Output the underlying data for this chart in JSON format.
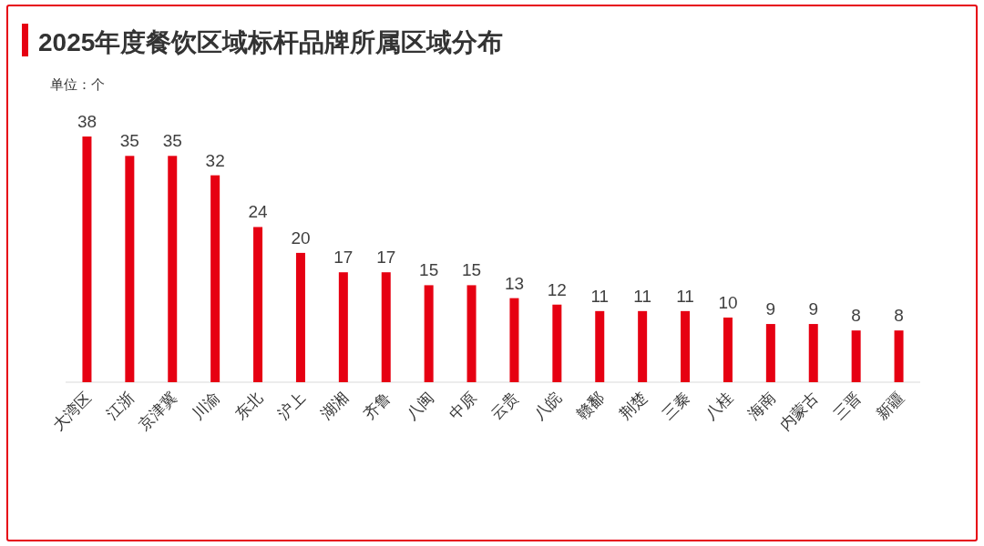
{
  "chart_data": {
    "type": "bar",
    "title": "2025年度餐饮区域标杆品牌所属区域分布",
    "categories": [
      "大湾区",
      "江浙",
      "京津冀",
      "川渝",
      "东北",
      "沪上",
      "湖湘",
      "齐鲁",
      "八闽",
      "中原",
      "云贵",
      "八皖",
      "赣鄱",
      "荆楚",
      "三秦",
      "八桂",
      "海南",
      "内蒙古",
      "三晋",
      "新疆"
    ],
    "values": [
      38,
      35,
      35,
      32,
      24,
      20,
      17,
      17,
      15,
      15,
      13,
      12,
      11,
      11,
      11,
      10,
      9,
      9,
      8,
      8
    ],
    "color": "#e60012",
    "data_labels": true,
    "annotations": [
      "单位：个"
    ]
  }
}
